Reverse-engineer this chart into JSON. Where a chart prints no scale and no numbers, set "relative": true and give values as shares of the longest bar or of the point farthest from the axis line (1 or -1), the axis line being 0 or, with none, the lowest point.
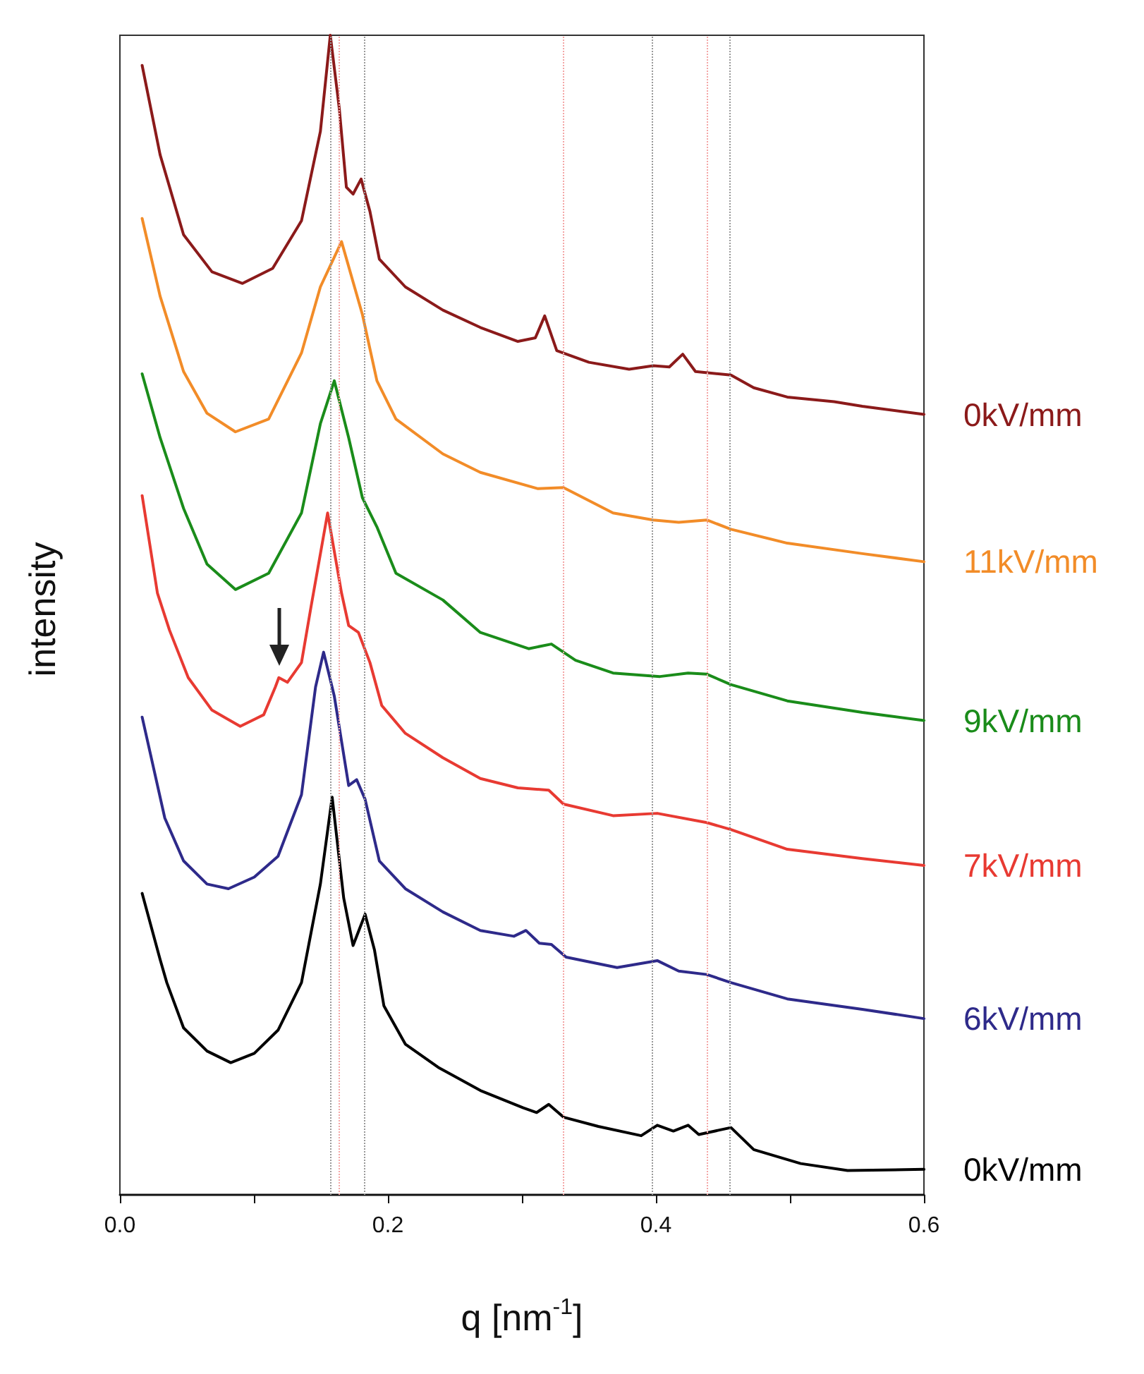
{
  "chart_data": {
    "type": "line",
    "xlabel": "q [nm$^{-1}$]",
    "ylabel": "intensity",
    "relative": true,
    "marker": "none",
    "xlim": [
      0,
      0.6
    ],
    "xticks": [
      {
        "value": 0,
        "label": "0.0"
      },
      {
        "value": 0.1,
        "label": null
      },
      0.2,
      {
        "value": 0.3,
        "label": null
      },
      0.4,
      {
        "value": 0.5,
        "label": null
      },
      0.6
    ],
    "ref_lines": [
      {
        "axis": "x",
        "value": 0.157,
        "color": "#999999",
        "line_style": "dotted"
      },
      {
        "axis": "x",
        "value": 0.163,
        "color": "#f4a6a6",
        "line_style": "dotted"
      },
      {
        "axis": "x",
        "value": 0.182,
        "color": "#999999",
        "line_style": "dotted"
      },
      {
        "axis": "x",
        "value": 0.331,
        "color": "#f4a6a6",
        "line_style": "dotted"
      },
      {
        "axis": "x",
        "value": 0.397,
        "color": "#999999",
        "line_style": "dotted"
      },
      {
        "axis": "x",
        "value": 0.438,
        "color": "#f4a6a6",
        "line_style": "dotted"
      },
      {
        "axis": "x",
        "value": 0.455,
        "color": "#999999",
        "line_style": "dotted"
      }
    ],
    "series": [
      {
        "name": "0kV/mm",
        "color": "#8b1a1a",
        "x": [
          0.0166,
          0.03,
          0.0475,
          0.0687,
          0.0915,
          0.114,
          0.1355,
          0.1496,
          0.157,
          0.1637,
          0.169,
          0.174,
          0.18,
          0.1866,
          0.1936,
          0.213,
          0.241,
          0.269,
          0.297,
          0.31,
          0.317,
          0.326,
          0.35,
          0.38,
          0.398,
          0.41,
          0.42,
          0.4295,
          0.456,
          0.473,
          0.498,
          0.533,
          0.554,
          0.6
        ],
        "values": [
          0.974,
          0.897,
          0.828,
          0.796,
          0.786,
          0.799,
          0.84,
          0.917,
          1.0,
          0.937,
          0.869,
          0.863,
          0.876,
          0.848,
          0.807,
          0.783,
          0.763,
          0.748,
          0.736,
          0.739,
          0.758,
          0.728,
          0.718,
          0.712,
          0.715,
          0.714,
          0.725,
          0.71,
          0.707,
          0.696,
          0.688,
          0.684,
          0.68,
          0.673
        ]
      },
      {
        "name": "11kV/mm",
        "color": "#f28c28",
        "x": [
          0.0166,
          0.03,
          0.0475,
          0.065,
          0.0862,
          0.111,
          0.1355,
          0.1496,
          0.1654,
          0.181,
          0.1918,
          0.206,
          0.241,
          0.269,
          0.312,
          0.331,
          0.368,
          0.398,
          0.417,
          0.438,
          0.456,
          0.498,
          0.554,
          0.6
        ],
        "values": [
          0.842,
          0.775,
          0.71,
          0.674,
          0.658,
          0.669,
          0.726,
          0.783,
          0.822,
          0.759,
          0.702,
          0.669,
          0.639,
          0.623,
          0.609,
          0.61,
          0.588,
          0.582,
          0.58,
          0.582,
          0.574,
          0.562,
          0.553,
          0.546
        ]
      },
      {
        "name": "9kV/mm",
        "color": "#1a8c1a",
        "x": [
          0.0166,
          0.03,
          0.0475,
          0.065,
          0.0862,
          0.111,
          0.1355,
          0.1496,
          0.16,
          0.1707,
          0.181,
          0.1918,
          0.206,
          0.241,
          0.269,
          0.305,
          0.322,
          0.34,
          0.368,
          0.403,
          0.424,
          0.438,
          0.456,
          0.498,
          0.554,
          0.6
        ],
        "values": [
          0.708,
          0.653,
          0.592,
          0.544,
          0.522,
          0.536,
          0.588,
          0.665,
          0.702,
          0.653,
          0.601,
          0.576,
          0.536,
          0.513,
          0.485,
          0.471,
          0.475,
          0.461,
          0.45,
          0.447,
          0.45,
          0.449,
          0.44,
          0.426,
          0.416,
          0.409
        ]
      },
      {
        "name": "7kV/mm",
        "color": "#e83a32",
        "x": [
          0.0166,
          0.028,
          0.037,
          0.051,
          0.0687,
          0.0898,
          0.1073,
          0.116,
          0.1186,
          0.125,
          0.1355,
          0.1426,
          0.155,
          0.1654,
          0.1707,
          0.178,
          0.1866,
          0.1954,
          0.213,
          0.241,
          0.269,
          0.297,
          0.32,
          0.331,
          0.368,
          0.401,
          0.438,
          0.456,
          0.498,
          0.554,
          0.6
        ],
        "values": [
          0.603,
          0.519,
          0.487,
          0.446,
          0.418,
          0.404,
          0.414,
          0.438,
          0.446,
          0.442,
          0.459,
          0.507,
          0.588,
          0.519,
          0.491,
          0.485,
          0.459,
          0.422,
          0.398,
          0.377,
          0.359,
          0.351,
          0.349,
          0.337,
          0.327,
          0.329,
          0.321,
          0.315,
          0.298,
          0.29,
          0.284
        ]
      },
      {
        "name": "6kV/mm",
        "color": "#2e2a8a",
        "x": [
          0.0166,
          0.0335,
          0.0475,
          0.065,
          0.081,
          0.1003,
          0.118,
          0.1355,
          0.146,
          0.152,
          0.16,
          0.1707,
          0.1767,
          0.183,
          0.1936,
          0.213,
          0.241,
          0.269,
          0.294,
          0.303,
          0.313,
          0.322,
          0.333,
          0.371,
          0.401,
          0.417,
          0.438,
          0.456,
          0.498,
          0.554,
          0.6
        ],
        "values": [
          0.412,
          0.325,
          0.288,
          0.268,
          0.264,
          0.274,
          0.292,
          0.345,
          0.438,
          0.468,
          0.43,
          0.353,
          0.358,
          0.341,
          0.288,
          0.264,
          0.244,
          0.228,
          0.223,
          0.228,
          0.217,
          0.216,
          0.205,
          0.196,
          0.202,
          0.193,
          0.19,
          0.183,
          0.169,
          0.16,
          0.152
        ]
      },
      {
        "name": "0kV/mm",
        "color": "#000000",
        "x": [
          0.0166,
          0.03,
          0.035,
          0.0475,
          0.065,
          0.0827,
          0.1003,
          0.118,
          0.1355,
          0.1496,
          0.1584,
          0.167,
          0.174,
          0.183,
          0.19,
          0.197,
          0.213,
          0.2375,
          0.269,
          0.301,
          0.311,
          0.32,
          0.331,
          0.357,
          0.389,
          0.401,
          0.413,
          0.424,
          0.432,
          0.456,
          0.473,
          0.508,
          0.543,
          0.6
        ],
        "values": [
          0.26,
          0.203,
          0.183,
          0.144,
          0.124,
          0.114,
          0.122,
          0.142,
          0.183,
          0.268,
          0.343,
          0.256,
          0.215,
          0.242,
          0.211,
          0.163,
          0.13,
          0.11,
          0.09,
          0.075,
          0.071,
          0.078,
          0.067,
          0.059,
          0.051,
          0.06,
          0.055,
          0.06,
          0.052,
          0.058,
          0.039,
          0.027,
          0.021,
          0.022
        ]
      }
    ]
  }
}
